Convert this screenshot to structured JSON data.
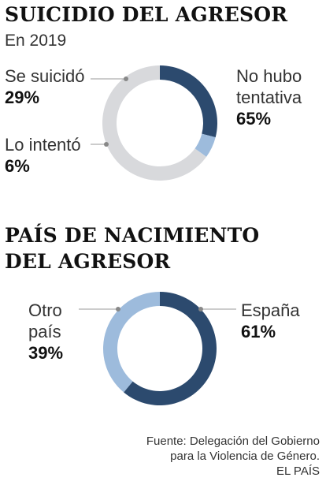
{
  "chart_data": [
    {
      "type": "pie",
      "title": "SUICIDIO DEL AGRESOR",
      "subtitle": "En 2019",
      "slices": [
        {
          "label_lines": [
            "Se suicidó"
          ],
          "value": 29,
          "value_label": "29%",
          "color": "#2c4a6e"
        },
        {
          "label_lines": [
            "Lo intentó"
          ],
          "value": 6,
          "value_label": "6%",
          "color": "#9dbbdc"
        },
        {
          "label_lines": [
            "No hubo",
            "tentativa"
          ],
          "value": 65,
          "value_label": "65%",
          "color": "#d8d9dc"
        }
      ]
    },
    {
      "type": "pie",
      "title": "PAÍS DE NACIMIENTO DEL AGRESOR",
      "title_lines": [
        "PAÍS DE NACIMIENTO",
        "DEL AGRESOR"
      ],
      "slices": [
        {
          "label_lines": [
            "España"
          ],
          "value": 61,
          "value_label": "61%",
          "color": "#2c4a6e"
        },
        {
          "label_lines": [
            "Otro",
            "país"
          ],
          "value": 39,
          "value_label": "39%",
          "color": "#9dbbdc"
        }
      ]
    }
  ],
  "source": {
    "lines": [
      "Fuente: Delegación del Gobierno",
      "para la Violencia de Género."
    ],
    "brand": "EL PAÍS"
  }
}
